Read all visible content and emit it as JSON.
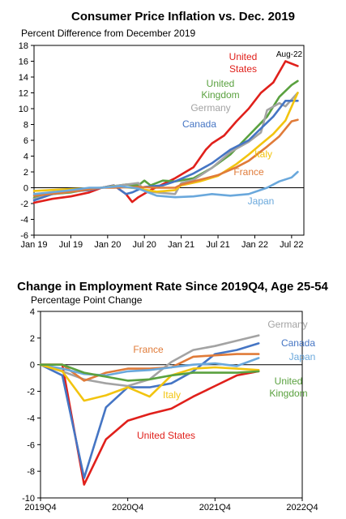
{
  "chart_data": [
    {
      "type": "line",
      "title": "Consumer Price Inflation vs. Dec. 2019",
      "subtitle": "Percent Difference from December 2019",
      "x_tick_labels": [
        "Jan 19",
        "Jul 19",
        "Jan 20",
        "Jul 20",
        "Jan 21",
        "Jul 21",
        "Jan 22",
        "Jul 22"
      ],
      "x_range": [
        "2019-01",
        "2022-09"
      ],
      "ylim": [
        -6,
        18
      ],
      "y_ticks": [
        -6,
        -4,
        -2,
        0,
        2,
        4,
        6,
        8,
        10,
        12,
        14,
        16,
        18
      ],
      "grid": false,
      "zero_line": true,
      "annotation": "Aug-22",
      "series": [
        {
          "name": "United States",
          "color": "#e0201b",
          "points": [
            [
              "2019-01",
              -1.9
            ],
            [
              "2019-04",
              -1.4
            ],
            [
              "2019-07",
              -1.1
            ],
            [
              "2019-10",
              -0.6
            ],
            [
              "2019-12",
              0.0
            ],
            [
              "2020-02",
              0.3
            ],
            [
              "2020-04",
              -0.8
            ],
            [
              "2020-05",
              -1.8
            ],
            [
              "2020-06",
              -1.2
            ],
            [
              "2020-08",
              -0.3
            ],
            [
              "2020-12",
              1.2
            ],
            [
              "2021-03",
              2.6
            ],
            [
              "2021-05",
              4.8
            ],
            [
              "2021-06",
              5.6
            ],
            [
              "2021-08",
              6.6
            ],
            [
              "2021-10",
              8.4
            ],
            [
              "2021-12",
              10.0
            ],
            [
              "2022-02",
              12.0
            ],
            [
              "2022-04",
              13.3
            ],
            [
              "2022-06",
              16.0
            ],
            [
              "2022-08",
              15.4
            ]
          ]
        },
        {
          "name": "United Kingdom",
          "color": "#5aa13f",
          "points": [
            [
              "2019-01",
              -1.3
            ],
            [
              "2019-04",
              -0.8
            ],
            [
              "2019-07",
              -0.6
            ],
            [
              "2019-10",
              -0.2
            ],
            [
              "2019-12",
              0.0
            ],
            [
              "2020-02",
              0.2
            ],
            [
              "2020-04",
              0.4
            ],
            [
              "2020-06",
              0.3
            ],
            [
              "2020-07",
              0.9
            ],
            [
              "2020-08",
              0.3
            ],
            [
              "2020-10",
              0.9
            ],
            [
              "2020-12",
              0.8
            ],
            [
              "2021-03",
              1.2
            ],
            [
              "2021-06",
              2.5
            ],
            [
              "2021-09",
              4.2
            ],
            [
              "2021-12",
              6.6
            ],
            [
              "2022-03",
              9.0
            ],
            [
              "2022-05",
              11.5
            ],
            [
              "2022-07",
              13.0
            ],
            [
              "2022-08",
              13.5
            ]
          ]
        },
        {
          "name": "Germany",
          "color": "#a3a3a3",
          "points": [
            [
              "2019-01",
              -1.4
            ],
            [
              "2019-04",
              -0.8
            ],
            [
              "2019-07",
              -0.5
            ],
            [
              "2019-10",
              -0.3
            ],
            [
              "2019-12",
              0.0
            ],
            [
              "2020-03",
              0.3
            ],
            [
              "2020-06",
              0.6
            ],
            [
              "2020-07",
              -0.4
            ],
            [
              "2020-09",
              -0.6
            ],
            [
              "2020-12",
              -0.8
            ],
            [
              "2021-01",
              0.6
            ],
            [
              "2021-03",
              1.0
            ],
            [
              "2021-06",
              2.5
            ],
            [
              "2021-09",
              4.5
            ],
            [
              "2021-12",
              5.8
            ],
            [
              "2022-02",
              7.0
            ],
            [
              "2022-03",
              9.8
            ],
            [
              "2022-05",
              10.7
            ],
            [
              "2022-06",
              10.3
            ],
            [
              "2022-08",
              12.0
            ]
          ]
        },
        {
          "name": "Canada",
          "color": "#4575c4",
          "points": [
            [
              "2019-01",
              -1.6
            ],
            [
              "2019-04",
              -0.8
            ],
            [
              "2019-07",
              -0.4
            ],
            [
              "2019-10",
              -0.3
            ],
            [
              "2019-12",
              0.0
            ],
            [
              "2020-02",
              0.3
            ],
            [
              "2020-04",
              -0.8
            ],
            [
              "2020-05",
              -0.6
            ],
            [
              "2020-07",
              0.1
            ],
            [
              "2020-10",
              0.3
            ],
            [
              "2020-12",
              0.8
            ],
            [
              "2021-03",
              1.8
            ],
            [
              "2021-06",
              3.1
            ],
            [
              "2021-09",
              4.8
            ],
            [
              "2021-12",
              6.0
            ],
            [
              "2022-02",
              7.5
            ],
            [
              "2022-04",
              9.0
            ],
            [
              "2022-06",
              11.0
            ],
            [
              "2022-08",
              11.0
            ]
          ]
        },
        {
          "name": "Italy",
          "color": "#f2c40f",
          "points": [
            [
              "2019-01",
              -0.4
            ],
            [
              "2019-06",
              -0.2
            ],
            [
              "2019-12",
              0.0
            ],
            [
              "2020-02",
              0.2
            ],
            [
              "2020-06",
              -0.1
            ],
            [
              "2020-09",
              -0.5
            ],
            [
              "2020-12",
              -0.3
            ],
            [
              "2021-01",
              0.3
            ],
            [
              "2021-04",
              0.8
            ],
            [
              "2021-07",
              1.5
            ],
            [
              "2021-10",
              3.0
            ],
            [
              "2021-12",
              4.2
            ],
            [
              "2022-02",
              5.5
            ],
            [
              "2022-04",
              6.8
            ],
            [
              "2022-06",
              8.5
            ],
            [
              "2022-08",
              12.0
            ]
          ]
        },
        {
          "name": "France",
          "color": "#e07b39",
          "points": [
            [
              "2019-01",
              -1.0
            ],
            [
              "2019-06",
              -0.6
            ],
            [
              "2019-12",
              0.0
            ],
            [
              "2020-02",
              0.0
            ],
            [
              "2020-06",
              0.1
            ],
            [
              "2020-09",
              0.0
            ],
            [
              "2020-12",
              0.0
            ],
            [
              "2021-01",
              0.4
            ],
            [
              "2021-04",
              1.0
            ],
            [
              "2021-07",
              1.6
            ],
            [
              "2021-10",
              2.6
            ],
            [
              "2021-12",
              3.4
            ],
            [
              "2022-03",
              5.2
            ],
            [
              "2022-05",
              6.5
            ],
            [
              "2022-07",
              8.4
            ],
            [
              "2022-08",
              8.6
            ]
          ]
        },
        {
          "name": "Japan",
          "color": "#6aa8dc",
          "points": [
            [
              "2019-01",
              -0.8
            ],
            [
              "2019-06",
              -0.4
            ],
            [
              "2019-10",
              0.0
            ],
            [
              "2019-12",
              0.0
            ],
            [
              "2020-03",
              0.2
            ],
            [
              "2020-06",
              -0.1
            ],
            [
              "2020-09",
              -1.0
            ],
            [
              "2020-12",
              -1.2
            ],
            [
              "2021-03",
              -1.1
            ],
            [
              "2021-06",
              -0.8
            ],
            [
              "2021-09",
              -1.0
            ],
            [
              "2021-12",
              -0.8
            ],
            [
              "2022-03",
              0.0
            ],
            [
              "2022-05",
              0.8
            ],
            [
              "2022-07",
              1.3
            ],
            [
              "2022-08",
              2.0
            ]
          ]
        }
      ]
    },
    {
      "type": "line",
      "title": "Change in Employment Rate Since 2019Q4, Age 25-54",
      "subtitle": "Percentage Point Change",
      "x_tick_labels": [
        "2019Q4",
        "2020Q4",
        "2021Q4",
        "2022Q4"
      ],
      "x_range": [
        "2019Q4",
        "2022Q4"
      ],
      "ylim": [
        -10,
        4
      ],
      "y_ticks": [
        -10,
        -8,
        -6,
        -4,
        -2,
        0,
        2,
        4
      ],
      "grid": false,
      "zero_line": true,
      "series": [
        {
          "name": "United States",
          "color": "#e0201b",
          "points": [
            [
              "2019Q4",
              0.0
            ],
            [
              "2020Q1",
              0.0
            ],
            [
              "2020Q2",
              -9.0
            ],
            [
              "2020Q3",
              -5.6
            ],
            [
              "2020Q4",
              -4.2
            ],
            [
              "2021Q1",
              -3.7
            ],
            [
              "2021Q2",
              -3.3
            ],
            [
              "2021Q3",
              -2.4
            ],
            [
              "2021Q4",
              -1.6
            ],
            [
              "2022Q1",
              -0.8
            ],
            [
              "2022Q2",
              -0.5
            ]
          ]
        },
        {
          "name": "Canada",
          "color": "#4575c4",
          "points": [
            [
              "2019Q4",
              0.0
            ],
            [
              "2020Q1",
              -0.8
            ],
            [
              "2020Q2",
              -8.5
            ],
            [
              "2020Q3",
              -3.2
            ],
            [
              "2020Q4",
              -1.7
            ],
            [
              "2021Q1",
              -1.7
            ],
            [
              "2021Q2",
              -1.4
            ],
            [
              "2021Q3",
              -0.5
            ],
            [
              "2021Q4",
              0.8
            ],
            [
              "2022Q1",
              1.1
            ],
            [
              "2022Q2",
              1.6
            ]
          ]
        },
        {
          "name": "Germany",
          "color": "#a3a3a3",
          "points": [
            [
              "2019Q4",
              0.0
            ],
            [
              "2020Q1",
              -0.5
            ],
            [
              "2020Q2",
              -1.1
            ],
            [
              "2020Q3",
              -1.4
            ],
            [
              "2020Q4",
              -1.6
            ],
            [
              "2021Q1",
              -1.1
            ],
            [
              "2021Q2",
              0.2
            ],
            [
              "2021Q3",
              1.1
            ],
            [
              "2021Q4",
              1.4
            ],
            [
              "2022Q1",
              1.8
            ],
            [
              "2022Q2",
              2.2
            ]
          ]
        },
        {
          "name": "France",
          "color": "#e07b39",
          "points": [
            [
              "2019Q4",
              0.0
            ],
            [
              "2020Q1",
              0.0
            ],
            [
              "2020Q2",
              -1.2
            ],
            [
              "2020Q3",
              -0.6
            ],
            [
              "2020Q4",
              -0.3
            ],
            [
              "2021Q1",
              -0.3
            ],
            [
              "2021Q2",
              -0.2
            ],
            [
              "2021Q3",
              0.6
            ],
            [
              "2021Q4",
              0.7
            ],
            [
              "2022Q1",
              0.8
            ],
            [
              "2022Q2",
              0.8
            ]
          ]
        },
        {
          "name": "Japan",
          "color": "#6aa8dc",
          "points": [
            [
              "2019Q4",
              0.0
            ],
            [
              "2020Q1",
              -0.3
            ],
            [
              "2020Q2",
              -0.7
            ],
            [
              "2020Q3",
              -0.8
            ],
            [
              "2020Q4",
              -0.5
            ],
            [
              "2021Q1",
              -0.4
            ],
            [
              "2021Q2",
              -0.2
            ],
            [
              "2021Q3",
              0.0
            ],
            [
              "2021Q4",
              0.1
            ],
            [
              "2022Q1",
              -0.1
            ],
            [
              "2022Q2",
              0.5
            ]
          ]
        },
        {
          "name": "Italy",
          "color": "#f2c40f",
          "points": [
            [
              "2019Q4",
              0.0
            ],
            [
              "2020Q1",
              -0.5
            ],
            [
              "2020Q2",
              -2.7
            ],
            [
              "2020Q3",
              -2.3
            ],
            [
              "2020Q4",
              -1.7
            ],
            [
              "2021Q1",
              -2.4
            ],
            [
              "2021Q2",
              -0.8
            ],
            [
              "2021Q3",
              -0.3
            ],
            [
              "2021Q4",
              -0.2
            ],
            [
              "2022Q1",
              -0.3
            ],
            [
              "2022Q2",
              -0.4
            ]
          ]
        },
        {
          "name": "United Kingdom",
          "color": "#5aa13f",
          "points": [
            [
              "2019Q4",
              0.0
            ],
            [
              "2020Q1",
              0.0
            ],
            [
              "2020Q2",
              -0.6
            ],
            [
              "2020Q3",
              -0.9
            ],
            [
              "2020Q4",
              -1.2
            ],
            [
              "2021Q1",
              -1.1
            ],
            [
              "2021Q2",
              -0.8
            ],
            [
              "2021Q3",
              -0.6
            ],
            [
              "2021Q4",
              -0.6
            ],
            [
              "2022Q1",
              -0.6
            ],
            [
              "2022Q2",
              -0.5
            ]
          ]
        }
      ]
    }
  ]
}
